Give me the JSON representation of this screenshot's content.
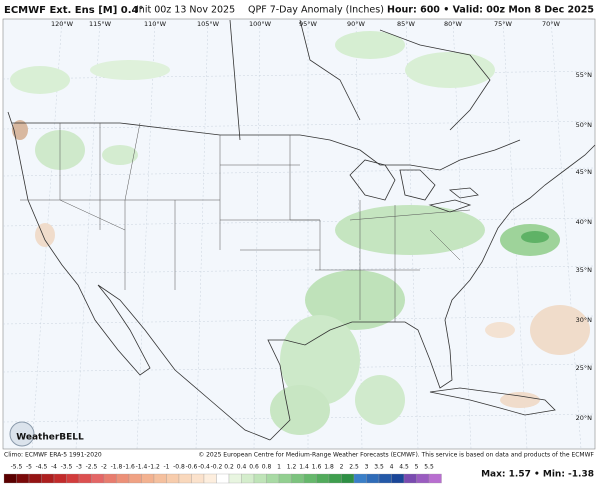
{
  "header": {
    "model": "ECMWF Ext. Ens [M] 0.4°",
    "init": "Init 00z 13 Nov 2025",
    "product": "QPF 7-Day Anomaly (Inches)",
    "valid": "Hour: 600 • Valid: 00z Mon 8 Dec 2025"
  },
  "map": {
    "lon_labels": [
      "120°W",
      "115°W",
      "110°W",
      "105°W",
      "100°W",
      "95°W",
      "90°W",
      "85°W",
      "80°W",
      "75°W",
      "70°W"
    ],
    "lat_labels": [
      "55°N",
      "50°N",
      "45°N",
      "40°N",
      "35°N",
      "30°N",
      "25°N",
      "20°N"
    ],
    "logo": "WeatherBELL"
  },
  "footer": {
    "climo": "Climo: ECMWF ERA-5 1991-2020",
    "copyright": "© 2025 European Centre for Medium-Range Weather Forecasts (ECMWF). This service is based on data and products of the ECMWF",
    "maxmin": "Max: 1.57 • Min: -1.38"
  },
  "colorbar": {
    "ticks": [
      -5.5,
      -5,
      -4.5,
      -4,
      -3.5,
      -3,
      -2.5,
      -2,
      -1.8,
      -1.6,
      -1.4,
      -1.2,
      -1,
      -0.8,
      -0.6,
      -0.4,
      -0.2,
      0.2,
      0.4,
      0.6,
      0.8,
      1,
      1.2,
      1.4,
      1.6,
      1.8,
      2,
      2.5,
      3,
      3.5,
      4,
      4.5,
      5,
      5.5
    ],
    "colors": [
      "#5a0000",
      "#7a0a0a",
      "#941414",
      "#ad1f1f",
      "#c22b2b",
      "#d23c3c",
      "#dc5050",
      "#e46666",
      "#e87c6e",
      "#ec9078",
      "#f0a284",
      "#f3b290",
      "#f5c09e",
      "#f7ccac",
      "#f9d8bc",
      "#fbe2cc",
      "#fdeede",
      "#ffffff",
      "#e8f5e0",
      "#d4edcc",
      "#bfe4b8",
      "#a8daa4",
      "#92cf90",
      "#7cc37e",
      "#66b86c",
      "#52ab5c",
      "#3f9e4e",
      "#2e8f44",
      "#3a7fc8",
      "#2f6cb8",
      "#2459a8",
      "#1a4698",
      "#7a4bb0",
      "#9a5cc0",
      "#b86ed0"
    ]
  }
}
